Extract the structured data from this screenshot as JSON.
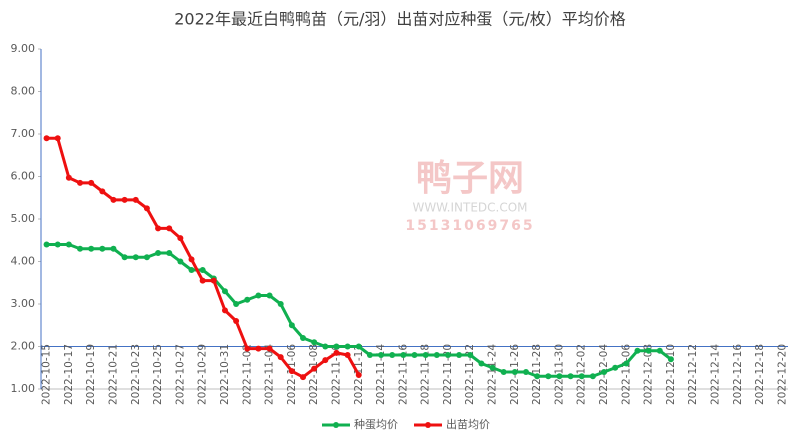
{
  "chart_data": {
    "type": "line",
    "title": "2022年最近白鸭鸭苗（元/羽）出苗对应种蛋（元/枚）平均价格",
    "categories": [
      "2022-10-15",
      null,
      "2022-10-17",
      null,
      "2022-10-19",
      null,
      "2022-10-21",
      null,
      "2022-10-23",
      null,
      "2022-10-25",
      null,
      "2022-10-27",
      null,
      "2022-10-29",
      null,
      "2022-10-31",
      null,
      "2022-11-02",
      null,
      "2022-11-04",
      null,
      "2022-11-06",
      null,
      "2022-11-08",
      null,
      "2022-11-10",
      null,
      "2022-11-12",
      null,
      "2022-11-14",
      null,
      "2022-11-16",
      null,
      "2022-11-18",
      null,
      "2022-11-20",
      null,
      "2022-11-22",
      null,
      "2022-11-24",
      null,
      "2022-11-26",
      null,
      "2022-11-28",
      null,
      "2022-11-30",
      null,
      "2022-12-02",
      null,
      "2022-12-04",
      null,
      "2022-12-06",
      null,
      "2022-12-08",
      null,
      "2022-12-10",
      null,
      "2022-12-12",
      null,
      "2022-12-14",
      null,
      "2022-12-16",
      null,
      "2022-12-18",
      null,
      "2022-12-20"
    ],
    "series": [
      {
        "name": "种蛋均价",
        "color": "#10b050",
        "values": [
          4.4,
          4.4,
          4.4,
          4.3,
          4.3,
          4.3,
          4.3,
          4.1,
          4.1,
          4.1,
          4.2,
          4.2,
          4.0,
          3.8,
          3.8,
          3.6,
          3.3,
          3.0,
          3.1,
          3.2,
          3.2,
          3.0,
          2.5,
          2.2,
          2.1,
          2.0,
          2.0,
          2.0,
          2.0,
          1.8,
          1.8,
          1.8,
          1.8,
          1.8,
          1.8,
          1.8,
          1.8,
          1.8,
          1.8,
          1.6,
          1.5,
          1.4,
          1.4,
          1.4,
          1.3,
          1.3,
          1.3,
          1.3,
          1.3,
          1.3,
          1.4,
          1.5,
          1.6,
          1.9,
          1.9,
          1.9,
          1.7,
          null,
          null,
          null,
          null,
          null,
          null,
          null,
          null,
          null,
          null
        ]
      },
      {
        "name": "出苗均价",
        "color": "#ee1010",
        "values": [
          6.9,
          6.9,
          5.97,
          5.85,
          5.85,
          5.65,
          5.45,
          5.45,
          5.45,
          5.25,
          4.78,
          4.78,
          4.55,
          4.05,
          3.55,
          3.55,
          2.85,
          2.6,
          1.95,
          1.95,
          1.95,
          1.75,
          1.42,
          1.28,
          1.48,
          1.68,
          1.85,
          1.8,
          1.33,
          null,
          null,
          null,
          null,
          null,
          null,
          null,
          null,
          null,
          null,
          null,
          null,
          null,
          null,
          null,
          null,
          null,
          null,
          null,
          null,
          null,
          null,
          null,
          null,
          null,
          null,
          null,
          null,
          null,
          null,
          null,
          null,
          null,
          null,
          null,
          null,
          null,
          null
        ]
      }
    ],
    "ylim": [
      1,
      9
    ],
    "yticks": [
      {
        "value": 1,
        "label": "1.00"
      },
      {
        "value": 2,
        "label": "2.00"
      },
      {
        "value": 3,
        "label": "3.00"
      },
      {
        "value": 4,
        "label": "4.00"
      },
      {
        "value": 5,
        "label": "5.00"
      },
      {
        "value": 6,
        "label": "6.00"
      },
      {
        "value": 7,
        "label": "7.00"
      },
      {
        "value": 8,
        "label": "8.00"
      },
      {
        "value": 9,
        "label": "9.00"
      }
    ],
    "reference_y": 2,
    "legend": "bottom",
    "watermark": [
      "鸭子网",
      "WWW.INTEDC.COM",
      "15131069765"
    ]
  }
}
